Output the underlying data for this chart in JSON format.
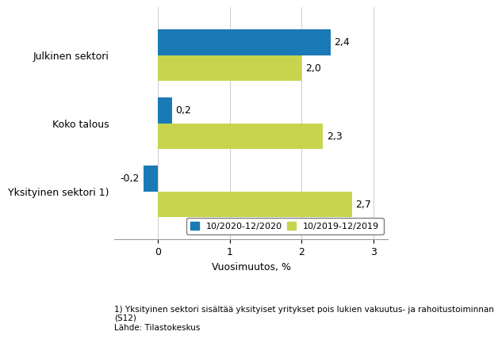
{
  "categories": [
    "Yksityinen sektori 1)",
    "Koko talous",
    "Julkinen sektori"
  ],
  "series": [
    {
      "label": "10/2020-12/2020",
      "color": "#1a7ab5",
      "values": [
        -0.2,
        0.2,
        2.4
      ]
    },
    {
      "label": "10/2019-12/2019",
      "color": "#c8d44e",
      "values": [
        2.7,
        2.3,
        2.0
      ]
    }
  ],
  "xlabel": "Vuosimuutos, %",
  "xlim": [
    -0.6,
    3.2
  ],
  "xticks": [
    0,
    1,
    2,
    3
  ],
  "footnote1": "1) Yksityinen sektori sisältää yksityiset yritykset pois lukien vakuutus- ja rahoitustoiminnan",
  "footnote2": "(S12)",
  "footnote3": "Lähde: Tilastokeskus",
  "bar_height": 0.38,
  "value_fontsize": 9,
  "label_fontsize": 9,
  "tick_fontsize": 9
}
